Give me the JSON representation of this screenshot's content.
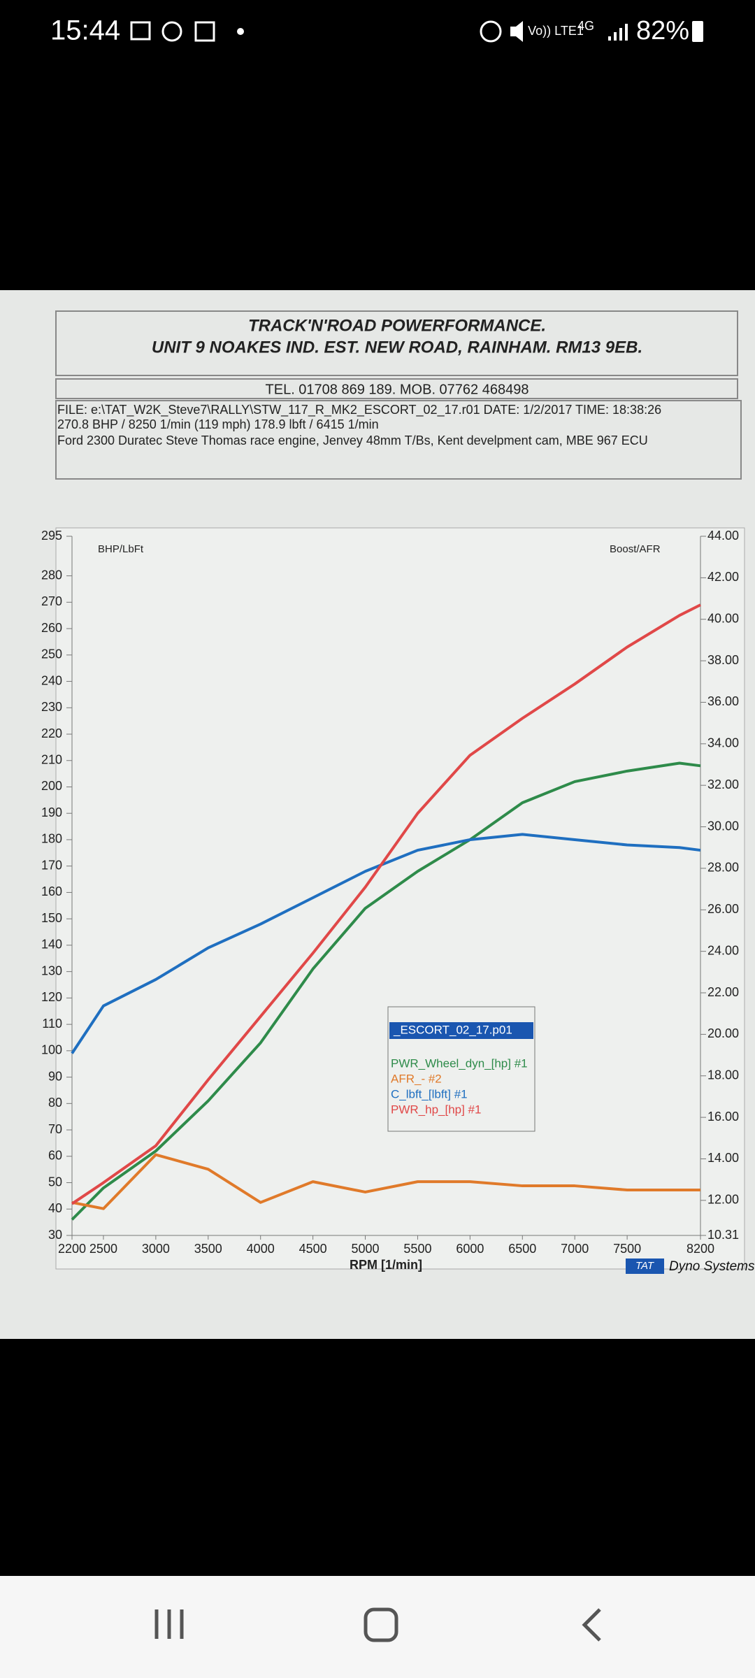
{
  "status_bar": {
    "time": "15:44",
    "network": "Vo)) LTE1",
    "signal": "4G",
    "battery": "82%"
  },
  "document": {
    "company": "TRACK'N'ROAD POWERFORMANCE.",
    "address": "UNIT 9 NOAKES IND. EST. NEW ROAD, RAINHAM. RM13 9EB.",
    "phone": "TEL. 01708 869 189. MOB. 07762 468498",
    "file": "FILE: e:\\TAT_W2K_Steve7\\RALLY\\STW_117_R_MK2_ESCORT_02_17.r01  DATE: 1/2/2017  TIME: 18:38:26",
    "peaks": "270.8 BHP / 8250 1/min (119 mph)    178.9 lbft / 6415 1/min",
    "engine": "Ford 2300 Duratec Steve Thomas race engine, Jenvey 48mm T/Bs, Kent develpment cam, MBE 967 ECU",
    "brand_badge": "TAT",
    "brand": "Dyno Systems"
  },
  "chart_data": {
    "type": "line",
    "y_label": "BHP/LbFt",
    "y2_label": "Boost/AFR",
    "x_label": "RPM  [1/min]",
    "legend_title": "_ESCORT_02_17.p01",
    "x": [
      2200,
      2500,
      3000,
      3500,
      4000,
      4500,
      5000,
      5500,
      6000,
      6500,
      7000,
      7500,
      8000,
      8200
    ],
    "series": [
      {
        "name": "PWR_Wheel_dyn_[hp] #1",
        "color": "#2e8b4a",
        "values": [
          36,
          48,
          62,
          81,
          103,
          131,
          154,
          168,
          180,
          194,
          202,
          206,
          209,
          208
        ]
      },
      {
        "name": "AFR_- #2",
        "color": "#e07a2a",
        "axis": "y2",
        "values": [
          11.9,
          11.6,
          14.2,
          13.5,
          11.9,
          12.9,
          12.4,
          12.9,
          12.9,
          12.7,
          12.7,
          12.5,
          12.5,
          12.5
        ]
      },
      {
        "name": "C_lbft_[lbft] #1",
        "color": "#1f6fc0",
        "values": [
          99,
          117,
          127,
          139,
          148,
          158,
          168,
          176,
          180,
          182,
          180,
          178,
          177,
          176
        ]
      },
      {
        "name": "PWR_hp_[hp] #1",
        "color": "#e04848",
        "values": [
          42,
          50,
          64,
          89,
          113,
          137,
          162,
          190,
          212,
          226,
          239,
          253,
          265,
          269
        ]
      }
    ],
    "xlim": [
      2200,
      8200
    ],
    "xticks": [
      2200,
      2500,
      3000,
      3500,
      4000,
      4500,
      5000,
      5500,
      6000,
      6500,
      7000,
      7500,
      8200
    ],
    "ylim": [
      30,
      295
    ],
    "yticks": [
      30,
      40,
      50,
      60,
      70,
      80,
      90,
      100,
      110,
      120,
      130,
      140,
      150,
      160,
      170,
      180,
      190,
      200,
      210,
      220,
      230,
      240,
      250,
      260,
      270,
      280,
      295
    ],
    "y2lim": [
      10.31,
      44
    ],
    "y2ticks": [
      {
        "value": 10.31,
        "label": "10.31"
      },
      {
        "value": 12,
        "label": "12.00"
      },
      {
        "value": 14,
        "label": "14.00"
      },
      {
        "value": 16,
        "label": "16.00"
      },
      {
        "value": 18,
        "label": "18.00"
      },
      {
        "value": 20,
        "label": "20.00"
      },
      {
        "value": 22,
        "label": "22.00"
      },
      {
        "value": 24,
        "label": "24.00"
      },
      {
        "value": 26,
        "label": "26.00"
      },
      {
        "value": 28,
        "label": "28.00"
      },
      {
        "value": 30,
        "label": "30.00"
      },
      {
        "value": 32,
        "label": "32.00"
      },
      {
        "value": 34,
        "label": "34.00"
      },
      {
        "value": 36,
        "label": "36.00"
      },
      {
        "value": 38,
        "label": "38.00"
      },
      {
        "value": 40,
        "label": "40.00"
      },
      {
        "value": 42,
        "label": "42.00"
      },
      {
        "value": 44,
        "label": "44.00"
      }
    ]
  }
}
